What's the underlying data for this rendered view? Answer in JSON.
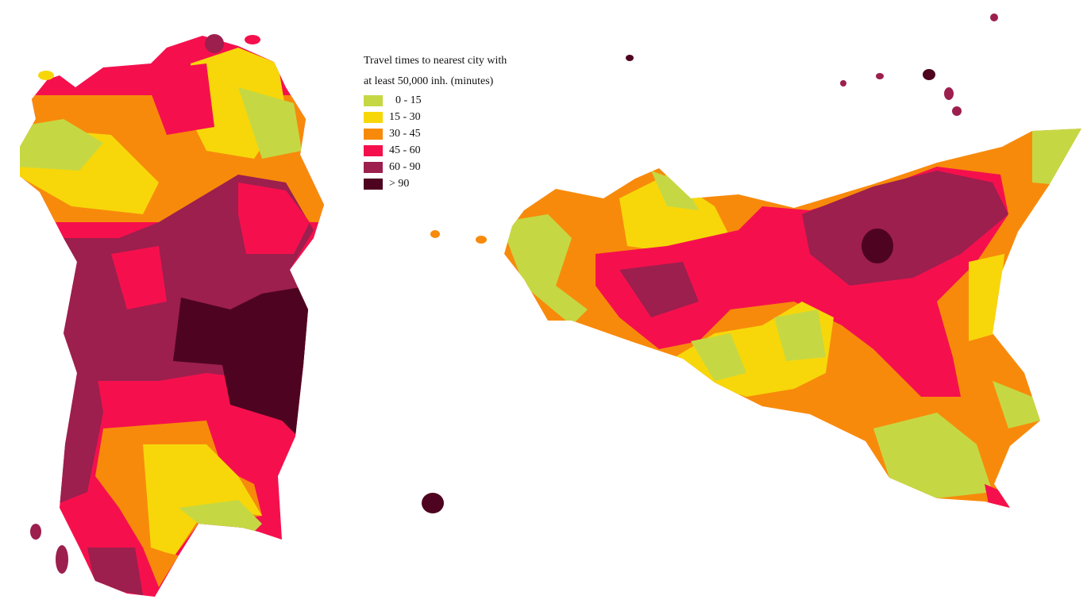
{
  "legend": {
    "title_line1": "Travel times to nearest city with",
    "title_line2": "at least 50,000 inh. (minutes)",
    "classes": [
      {
        "label": "0 - 15",
        "color": "#c5d843"
      },
      {
        "label": "15 - 30",
        "color": "#f7d70a"
      },
      {
        "label": "30 - 45",
        "color": "#f88a0b"
      },
      {
        "label": "45 - 60",
        "color": "#f5104d"
      },
      {
        "label": "60 - 90",
        "color": "#9c1f4e"
      },
      {
        "label": "> 90",
        "color": "#4e0420"
      }
    ]
  }
}
